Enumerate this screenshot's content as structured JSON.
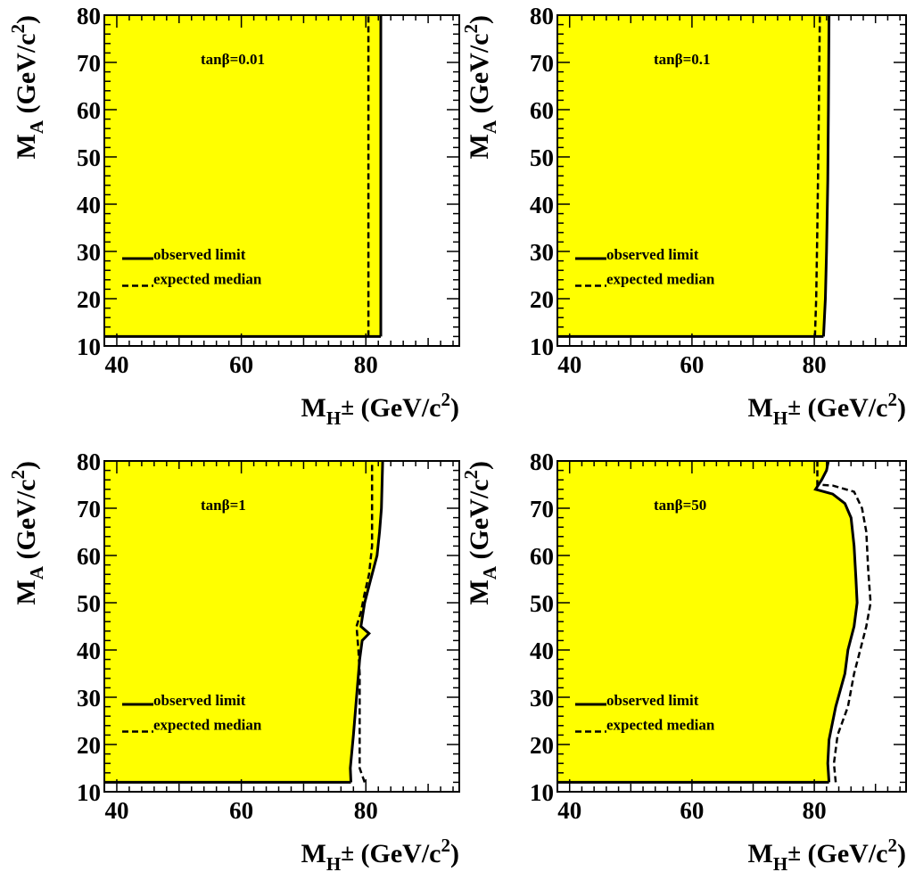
{
  "chart_data": [
    {
      "type": "area",
      "annotation": "tanβ=0.01",
      "xlabel": "M_H± (GeV/c²)",
      "ylabel": "M_A (GeV/c²)",
      "xlim": [
        38,
        95
      ],
      "ylim": [
        10,
        80
      ],
      "x_ticks": [
        "40",
        "60",
        "80"
      ],
      "y_ticks": [
        "10",
        "20",
        "30",
        "40",
        "50",
        "60",
        "70",
        "80"
      ],
      "legend": {
        "observed": "observed limit",
        "expected": "expected median",
        "placement": "lower-left"
      },
      "exclusion_floor": 12,
      "series": [
        {
          "name": "observed limit",
          "style": "solid",
          "points": [
            [
              82.4,
              12
            ],
            [
              82.4,
              80
            ]
          ]
        },
        {
          "name": "expected median",
          "style": "dashed",
          "points": [
            [
              80.4,
              12
            ],
            [
              80.4,
              80
            ]
          ]
        }
      ]
    },
    {
      "type": "area",
      "annotation": "tanβ=0.1",
      "xlabel": "M_H± (GeV/c²)",
      "ylabel": "M_A (GeV/c²)",
      "xlim": [
        38,
        95
      ],
      "ylim": [
        10,
        80
      ],
      "x_ticks": [
        "40",
        "60",
        "80"
      ],
      "y_ticks": [
        "10",
        "20",
        "30",
        "40",
        "50",
        "60",
        "70",
        "80"
      ],
      "legend": {
        "observed": "observed limit",
        "expected": "expected median",
        "placement": "lower-left"
      },
      "exclusion_floor": 12,
      "series": [
        {
          "name": "observed limit",
          "style": "solid",
          "points": [
            [
              81.5,
              12
            ],
            [
              81.8,
              20
            ],
            [
              82.0,
              30
            ],
            [
              82.2,
              45
            ],
            [
              82.3,
              60
            ],
            [
              82.4,
              80
            ]
          ]
        },
        {
          "name": "expected median",
          "style": "dashed",
          "points": [
            [
              80.1,
              12
            ],
            [
              80.3,
              20
            ],
            [
              80.5,
              35
            ],
            [
              80.7,
              55
            ],
            [
              80.9,
              80
            ]
          ]
        }
      ]
    },
    {
      "type": "area",
      "annotation": "tanβ=1",
      "xlabel": "M_H± (GeV/c²)",
      "ylabel": "M_A (GeV/c²)",
      "xlim": [
        38,
        95
      ],
      "ylim": [
        10,
        80
      ],
      "x_ticks": [
        "40",
        "60",
        "80"
      ],
      "y_ticks": [
        "10",
        "20",
        "30",
        "40",
        "50",
        "60",
        "70",
        "80"
      ],
      "legend": {
        "observed": "observed limit",
        "expected": "expected median",
        "placement": "lower-left"
      },
      "exclusion_floor": 12,
      "series": [
        {
          "name": "observed limit",
          "style": "solid",
          "points": [
            [
              77.6,
              12
            ],
            [
              77.5,
              15
            ],
            [
              78.0,
              22
            ],
            [
              78.5,
              30
            ],
            [
              79.0,
              38
            ],
            [
              79.4,
              42
            ],
            [
              80.5,
              43.5
            ],
            [
              79.2,
              45
            ],
            [
              79.8,
              50
            ],
            [
              80.8,
              55
            ],
            [
              81.8,
              60
            ],
            [
              82.2,
              65
            ],
            [
              82.5,
              70
            ],
            [
              82.7,
              80
            ]
          ]
        },
        {
          "name": "expected median",
          "style": "dashed",
          "points": [
            [
              79.8,
              12
            ],
            [
              79.0,
              15
            ],
            [
              79.0,
              20
            ],
            [
              79.0,
              25
            ],
            [
              79.0,
              35
            ],
            [
              78.8,
              40
            ],
            [
              78.5,
              45
            ],
            [
              79.2,
              48
            ],
            [
              79.8,
              52
            ],
            [
              80.5,
              56
            ],
            [
              81.0,
              62
            ],
            [
              81.0,
              70
            ],
            [
              81.0,
              80
            ]
          ]
        }
      ]
    },
    {
      "type": "area",
      "annotation": "tanβ=50",
      "xlabel": "M_H± (GeV/c²)",
      "ylabel": "M_A (GeV/c²)",
      "xlim": [
        38,
        95
      ],
      "ylim": [
        10,
        80
      ],
      "x_ticks": [
        "40",
        "60",
        "80"
      ],
      "y_ticks": [
        "10",
        "20",
        "30",
        "40",
        "50",
        "60",
        "70",
        "80"
      ],
      "legend": {
        "observed": "observed limit",
        "expected": "expected median",
        "placement": "lower-left"
      },
      "exclusion_floor": 12,
      "series": [
        {
          "name": "observed limit",
          "style": "solid",
          "points": [
            [
              82.4,
              12
            ],
            [
              82.2,
              16
            ],
            [
              82.4,
              21
            ],
            [
              83.5,
              28
            ],
            [
              85.0,
              35
            ],
            [
              85.5,
              40
            ],
            [
              86.5,
              45
            ],
            [
              87.0,
              50
            ],
            [
              86.8,
              55
            ],
            [
              86.5,
              62
            ],
            [
              86.0,
              68
            ],
            [
              85.0,
              71
            ],
            [
              83.0,
              73
            ],
            [
              80.2,
              74
            ],
            [
              81.2,
              76
            ],
            [
              82.0,
              78
            ],
            [
              82.3,
              80
            ]
          ]
        },
        {
          "name": "expected median",
          "style": "dashed",
          "points": [
            [
              83.5,
              12
            ],
            [
              83.2,
              16
            ],
            [
              83.8,
              22
            ],
            [
              85.5,
              28
            ],
            [
              86.5,
              35
            ],
            [
              87.5,
              40
            ],
            [
              88.5,
              45
            ],
            [
              89.2,
              50
            ],
            [
              88.8,
              57
            ],
            [
              88.5,
              65
            ],
            [
              87.8,
              70
            ],
            [
              86.5,
              73.5
            ],
            [
              83.0,
              74.8
            ],
            [
              80.5,
              75
            ],
            [
              80.5,
              80
            ]
          ]
        }
      ]
    }
  ]
}
